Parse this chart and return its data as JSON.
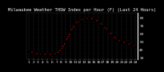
{
  "title": "Milwaukee Weather THSW Index per Hour (F) (Last 24 Hours)",
  "hours": [
    1,
    2,
    3,
    4,
    5,
    6,
    7,
    8,
    9,
    10,
    11,
    12,
    13,
    14,
    15,
    16,
    17,
    18,
    19,
    20,
    21,
    22,
    23,
    24
  ],
  "values": [
    38,
    36,
    34,
    35,
    33,
    34,
    35,
    40,
    50,
    62,
    72,
    76,
    78,
    79,
    78,
    75,
    70,
    64,
    58,
    52,
    50,
    48,
    46,
    44
  ],
  "line_color": "#cc0000",
  "marker_color": "#000000",
  "bg_color": "#000000",
  "plot_bg": "#000000",
  "grid_color": "#555555",
  "ylim": [
    28,
    86
  ],
  "yticks": [
    30,
    40,
    50,
    60,
    70,
    80
  ],
  "ytick_labels": [
    "30",
    "40",
    "50",
    "60",
    "70",
    "80"
  ],
  "title_fontsize": 4.0,
  "tick_fontsize": 3.2,
  "right_border_color": "#ffffff"
}
